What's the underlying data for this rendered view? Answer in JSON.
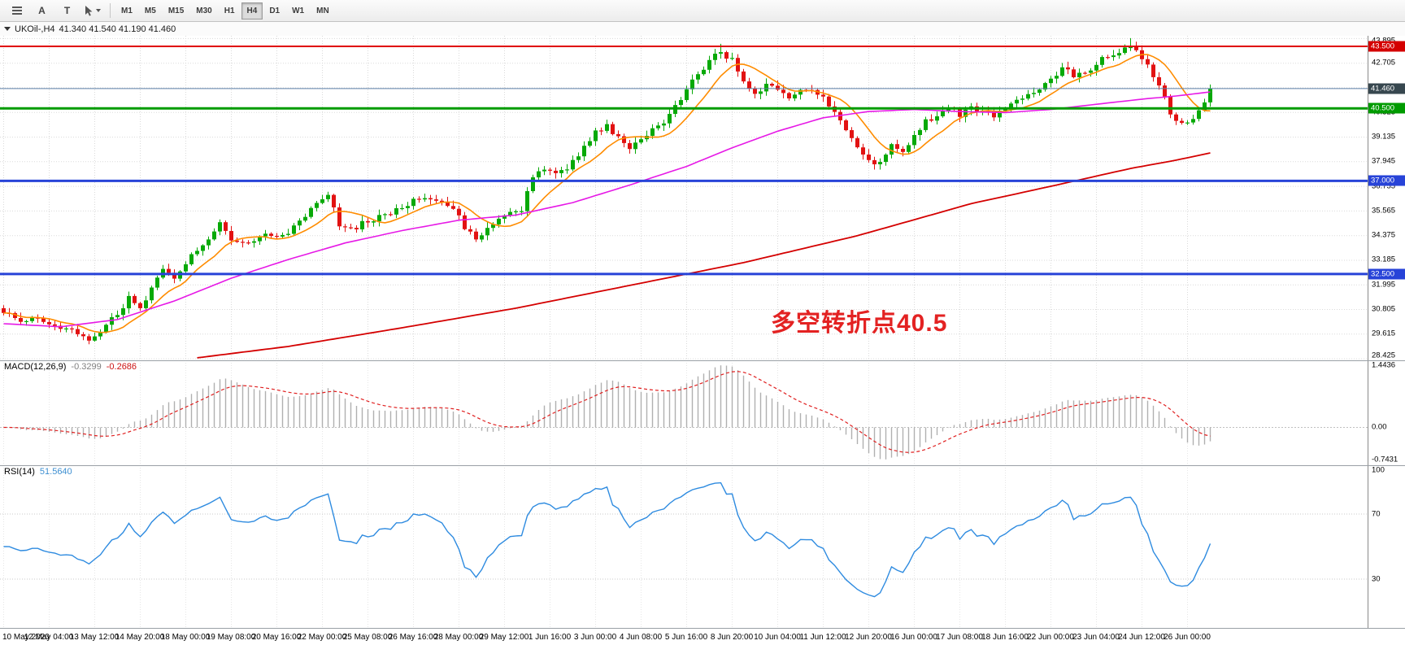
{
  "toolbar": {
    "tools": [
      {
        "name": "menu",
        "label": ""
      },
      {
        "name": "annotate-a",
        "label": "A"
      },
      {
        "name": "annotate-t",
        "label": "T"
      },
      {
        "name": "cursor-select",
        "label": ""
      }
    ],
    "timeframes": [
      "M1",
      "M5",
      "M15",
      "M30",
      "H1",
      "H4",
      "D1",
      "W1",
      "MN"
    ],
    "active_timeframe": "H4"
  },
  "chart_header": {
    "title": "UKOil-,H4",
    "ohlc": "41.340 41.540 41.190 41.460"
  },
  "macd": {
    "name": "MACD(12,26,9)",
    "value_main": "-0.3299",
    "value_signal": "-0.2686",
    "axis_labels": [
      "1.4436",
      "0.00",
      "-0.7431"
    ]
  },
  "rsi": {
    "name": "RSI(14)",
    "value": "51.5640",
    "axis_labels": [
      "100",
      "70",
      "30"
    ]
  },
  "chart_data": {
    "type": "candlestick",
    "symbol": "UKOil-",
    "timeframe": "H4",
    "ohlc_display": {
      "open": 41.34,
      "high": 41.54,
      "low": 41.19,
      "close": 41.46
    },
    "last_close": 41.46,
    "session_high": 43.895,
    "session_low": 28.9,
    "peak_candle": 198,
    "secondary_peak_candle": 126,
    "candle_count": 213,
    "price_axis": {
      "min": 28.33,
      "max": 44.01
    },
    "y_axis_labels": [
      "43.895",
      "42.705",
      "41.515",
      "40.325",
      "39.135",
      "37.945",
      "36.755",
      "35.565",
      "34.375",
      "33.185",
      "31.995",
      "30.805",
      "29.615",
      "28.425"
    ],
    "x_labels": [
      "10 May 2020",
      "12 May 04:00",
      "13 May 12:00",
      "14 May 20:00",
      "18 May 00:00",
      "19 May 08:00",
      "20 May 16:00",
      "22 May 00:00",
      "25 May 08:00",
      "26 May 16:00",
      "28 May 00:00",
      "29 May 12:00",
      "1 Jun 16:00",
      "3 Jun 00:00",
      "4 Jun 08:00",
      "5 Jun 16:00",
      "8 Jun 20:00",
      "10 Jun 04:00",
      "11 Jun 12:00",
      "12 Jun 20:00",
      "16 Jun 00:00",
      "17 Jun 08:00",
      "18 Jun 16:00",
      "22 Jun 00:00",
      "23 Jun 04:00",
      "24 Jun 12:00",
      "26 Jun 00:00"
    ],
    "colors": {
      "up": "#07a907",
      "down": "#e21212",
      "grid": "#dadada"
    },
    "price_waypoints": [
      [
        0,
        30.7
      ],
      [
        3,
        30.2
      ],
      [
        6,
        30.5
      ],
      [
        9,
        29.9
      ],
      [
        12,
        29.7
      ],
      [
        15,
        29.35
      ],
      [
        17,
        29.8
      ],
      [
        20,
        30.6
      ],
      [
        22,
        31.3
      ],
      [
        24,
        30.9
      ],
      [
        26,
        31.8
      ],
      [
        28,
        32.6
      ],
      [
        30,
        32.3
      ],
      [
        33,
        33.5
      ],
      [
        36,
        34.3
      ],
      [
        38,
        34.9
      ],
      [
        40,
        34.2
      ],
      [
        43,
        33.9
      ],
      [
        46,
        34.4
      ],
      [
        49,
        34.3
      ],
      [
        52,
        35.1
      ],
      [
        55,
        35.9
      ],
      [
        57,
        36.3
      ],
      [
        59,
        34.9
      ],
      [
        61,
        34.6
      ],
      [
        64,
        35.1
      ],
      [
        67,
        35.3
      ],
      [
        70,
        35.8
      ],
      [
        73,
        36.2
      ],
      [
        76,
        36.1
      ],
      [
        79,
        35.6
      ],
      [
        81,
        34.8
      ],
      [
        83,
        34.2
      ],
      [
        86,
        34.9
      ],
      [
        89,
        35.4
      ],
      [
        91,
        35.5
      ],
      [
        93,
        37.3
      ],
      [
        95,
        37.6
      ],
      [
        98,
        37.4
      ],
      [
        101,
        38.3
      ],
      [
        104,
        39.3
      ],
      [
        106,
        39.7
      ],
      [
        108,
        39.1
      ],
      [
        110,
        38.6
      ],
      [
        112,
        39.0
      ],
      [
        114,
        39.4
      ],
      [
        116,
        39.8
      ],
      [
        118,
        40.6
      ],
      [
        120,
        41.4
      ],
      [
        122,
        42.2
      ],
      [
        124,
        42.8
      ],
      [
        126,
        43.3
      ],
      [
        128,
        42.8
      ],
      [
        130,
        41.9
      ],
      [
        132,
        41.2
      ],
      [
        134,
        41.6
      ],
      [
        136,
        41.4
      ],
      [
        138,
        41.0
      ],
      [
        140,
        41.3
      ],
      [
        142,
        41.5
      ],
      [
        144,
        41.0
      ],
      [
        146,
        40.2
      ],
      [
        148,
        39.4
      ],
      [
        150,
        38.6
      ],
      [
        152,
        38.1
      ],
      [
        154,
        37.8
      ],
      [
        156,
        38.8
      ],
      [
        158,
        38.3
      ],
      [
        160,
        39.3
      ],
      [
        162,
        39.9
      ],
      [
        164,
        40.2
      ],
      [
        166,
        40.5
      ],
      [
        168,
        40.2
      ],
      [
        170,
        40.6
      ],
      [
        172,
        40.3
      ],
      [
        174,
        40.1
      ],
      [
        176,
        40.5
      ],
      [
        178,
        40.9
      ],
      [
        180,
        41.2
      ],
      [
        182,
        41.5
      ],
      [
        184,
        41.9
      ],
      [
        186,
        42.4
      ],
      [
        188,
        42.1
      ],
      [
        190,
        42.3
      ],
      [
        192,
        42.6
      ],
      [
        194,
        43.1
      ],
      [
        196,
        43.2
      ],
      [
        198,
        43.6
      ],
      [
        200,
        42.9
      ],
      [
        202,
        42.1
      ],
      [
        204,
        41.0
      ],
      [
        205,
        40.2
      ],
      [
        207,
        39.7
      ],
      [
        209,
        40.1
      ],
      [
        211,
        40.9
      ],
      [
        212,
        41.46
      ]
    ],
    "overlays": [
      {
        "name": "ma-fast",
        "type": "sma",
        "period": 9,
        "color": "#ff8c00",
        "width": 1.6
      },
      {
        "name": "ma-mid",
        "type": "waypoints",
        "color": "#e619e6",
        "width": 1.6,
        "waypoints": [
          [
            0,
            30.1
          ],
          [
            10,
            29.95
          ],
          [
            20,
            30.3
          ],
          [
            30,
            31.2
          ],
          [
            40,
            32.3
          ],
          [
            50,
            33.2
          ],
          [
            60,
            34.0
          ],
          [
            70,
            34.6
          ],
          [
            80,
            35.1
          ],
          [
            90,
            35.35
          ],
          [
            100,
            35.95
          ],
          [
            110,
            36.8
          ],
          [
            120,
            37.7
          ],
          [
            128,
            38.6
          ],
          [
            136,
            39.4
          ],
          [
            144,
            40.05
          ],
          [
            152,
            40.35
          ],
          [
            160,
            40.45
          ],
          [
            168,
            40.35
          ],
          [
            176,
            40.3
          ],
          [
            184,
            40.45
          ],
          [
            192,
            40.7
          ],
          [
            200,
            40.95
          ],
          [
            206,
            41.1
          ],
          [
            212,
            41.3
          ]
        ]
      },
      {
        "name": "ma-slow",
        "type": "waypoints",
        "color": "#d40000",
        "width": 1.8,
        "start": 34,
        "waypoints": [
          [
            34,
            28.45
          ],
          [
            50,
            29.0
          ],
          [
            70,
            29.9
          ],
          [
            90,
            30.85
          ],
          [
            110,
            31.95
          ],
          [
            130,
            33.05
          ],
          [
            150,
            34.35
          ],
          [
            170,
            35.9
          ],
          [
            185,
            36.8
          ],
          [
            198,
            37.6
          ],
          [
            206,
            38.0
          ],
          [
            212,
            38.35
          ]
        ]
      }
    ],
    "levels": [
      {
        "price": 43.5,
        "label": "43.500",
        "color": "#e00000",
        "width": 2,
        "badge": "#d40000"
      },
      {
        "price": 41.46,
        "label": "41.460",
        "color": "#5b7fa6",
        "width": 1,
        "badge": "#37474f"
      },
      {
        "price": 40.5,
        "label": "40.500",
        "color": "#009b00",
        "width": 3,
        "badge": "#009b00"
      },
      {
        "price": 37.0,
        "label": "37.000",
        "color": "#2743d8",
        "width": 3,
        "badge": "#2743d8"
      },
      {
        "price": 32.5,
        "label": "32.500",
        "color": "#2743d8",
        "width": 3,
        "badge": "#2743d8"
      }
    ],
    "annotation": {
      "text": "多空转折点40.5",
      "color": "#e32222"
    },
    "macd_series": {
      "params": [
        12,
        26,
        9
      ],
      "last": -0.3299,
      "signal_last": -0.2686,
      "range": [
        -0.7431,
        1.4436
      ]
    },
    "rsi_series": {
      "period": 14,
      "last": 51.564,
      "levels": [
        70,
        30
      ],
      "range": [
        0,
        100
      ]
    }
  }
}
